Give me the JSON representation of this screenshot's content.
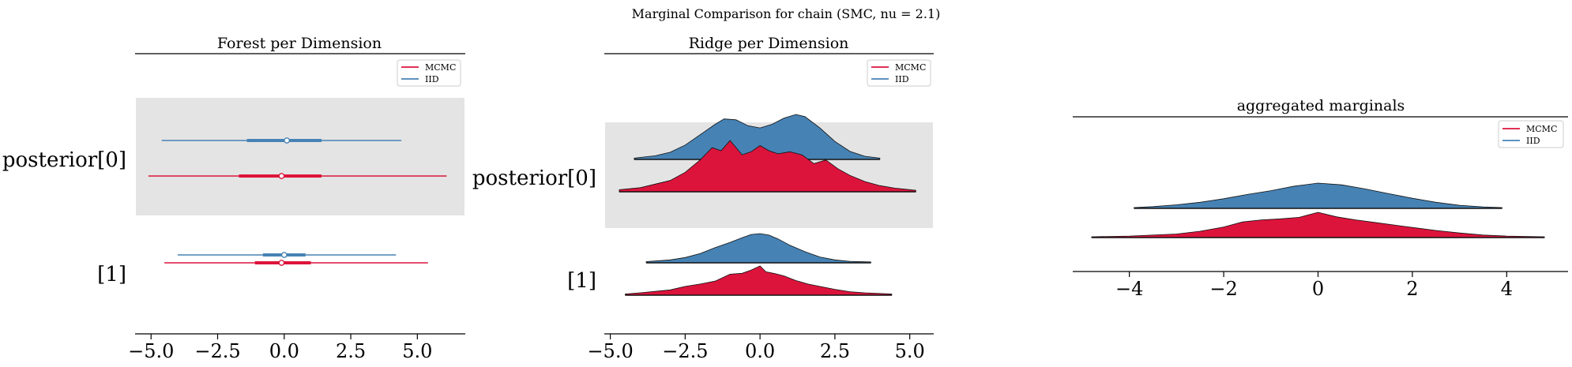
{
  "figure": {
    "suptitle": "Marginal Comparison for chain (SMC, nu = 2.1)"
  },
  "colors": {
    "mcmc": "#dc143c",
    "iid": "#4682b4",
    "shade": "#e4e4e4"
  },
  "chart_data": [
    {
      "type": "forest",
      "title": "Forest per Dimension",
      "xlim": [
        -5.6,
        6.8
      ],
      "xticks": [
        -5.0,
        -2.5,
        0.0,
        2.5,
        5.0
      ],
      "xtick_labels": [
        "−5.0",
        "−2.5",
        "0.0",
        "2.5",
        "5.0"
      ],
      "rows": [
        "posterior[0]",
        "[1]"
      ],
      "legend": {
        "location": "upper right",
        "entries": [
          "MCMC",
          "IID"
        ]
      },
      "series": [
        {
          "name": "MCMC",
          "color_key": "mcmc",
          "intervals": [
            {
              "row": "posterior[0]",
              "low": -5.1,
              "q1": -1.7,
              "median": -0.1,
              "q3": 1.4,
              "high": 6.1
            },
            {
              "row": "[1]",
              "low": -4.5,
              "q1": -1.1,
              "median": -0.1,
              "q3": 1.0,
              "high": 5.4
            }
          ]
        },
        {
          "name": "IID",
          "color_key": "iid",
          "intervals": [
            {
              "row": "posterior[0]",
              "low": -4.6,
              "q1": -1.4,
              "median": 0.1,
              "q3": 1.4,
              "high": 4.4
            },
            {
              "row": "[1]",
              "low": -4.0,
              "q1": -0.8,
              "median": 0.0,
              "q3": 0.8,
              "high": 4.2
            }
          ]
        }
      ]
    },
    {
      "type": "ridge",
      "title": "Ridge per Dimension",
      "xlim": [
        -5.2,
        5.8
      ],
      "xticks": [
        -5.0,
        -2.5,
        0.0,
        2.5,
        5.0
      ],
      "xtick_labels": [
        "−5.0",
        "−2.5",
        "0.0",
        "2.5",
        "5.0"
      ],
      "rows": [
        "posterior[0]",
        "[1]"
      ],
      "legend": {
        "location": "upper right",
        "entries": [
          "MCMC",
          "IID"
        ]
      },
      "series": [
        {
          "name": "IID",
          "color_key": "iid",
          "row": "posterior[0]",
          "x": [
            -4.2,
            -3.5,
            -3.0,
            -2.5,
            -2.0,
            -1.5,
            -1.2,
            -0.8,
            -0.4,
            0.0,
            0.4,
            0.8,
            1.2,
            1.5,
            2.0,
            2.5,
            3.0,
            3.5,
            4.0
          ],
          "density": [
            0.03,
            0.08,
            0.16,
            0.32,
            0.55,
            0.78,
            0.9,
            0.88,
            0.75,
            0.7,
            0.78,
            0.92,
            1.0,
            0.95,
            0.7,
            0.4,
            0.18,
            0.07,
            0.03
          ]
        },
        {
          "name": "MCMC",
          "color_key": "mcmc",
          "row": "posterior[0]",
          "x": [
            -4.7,
            -4.0,
            -3.0,
            -2.5,
            -2.0,
            -1.6,
            -1.3,
            -1.0,
            -0.6,
            -0.3,
            0.0,
            0.3,
            0.6,
            1.0,
            1.4,
            1.8,
            2.2,
            2.6,
            3.0,
            3.5,
            4.0,
            4.5,
            5.2
          ],
          "density": [
            0.04,
            0.08,
            0.22,
            0.38,
            0.62,
            0.86,
            0.8,
            1.0,
            0.72,
            0.78,
            0.9,
            0.8,
            0.74,
            0.78,
            0.72,
            0.55,
            0.62,
            0.45,
            0.32,
            0.2,
            0.12,
            0.07,
            0.03
          ]
        },
        {
          "name": "IID",
          "color_key": "iid",
          "row": "[1]",
          "x": [
            -3.8,
            -3.0,
            -2.5,
            -2.0,
            -1.5,
            -1.0,
            -0.6,
            -0.3,
            0.0,
            0.3,
            0.6,
            1.0,
            1.5,
            2.0,
            2.5,
            3.0,
            3.7
          ],
          "density": [
            0.04,
            0.1,
            0.18,
            0.32,
            0.52,
            0.7,
            0.86,
            0.97,
            1.0,
            0.95,
            0.82,
            0.6,
            0.38,
            0.2,
            0.1,
            0.05,
            0.03
          ]
        },
        {
          "name": "MCMC",
          "color_key": "mcmc",
          "row": "[1]",
          "x": [
            -4.5,
            -4.0,
            -3.0,
            -2.5,
            -2.0,
            -1.5,
            -1.0,
            -0.6,
            -0.3,
            0.0,
            0.2,
            0.5,
            0.8,
            1.2,
            1.6,
            2.0,
            2.5,
            3.0,
            3.5,
            4.4
          ],
          "density": [
            0.04,
            0.08,
            0.18,
            0.3,
            0.38,
            0.48,
            0.72,
            0.75,
            0.86,
            1.0,
            0.8,
            0.74,
            0.66,
            0.5,
            0.38,
            0.3,
            0.2,
            0.12,
            0.08,
            0.04
          ]
        }
      ]
    },
    {
      "type": "ridge",
      "title": "aggregated marginals",
      "xlim": [
        -5.2,
        5.3
      ],
      "xticks": [
        -4,
        -2,
        0,
        2,
        4
      ],
      "xtick_labels": [
        "−4",
        "−2",
        "0",
        "2",
        "4"
      ],
      "legend": {
        "location": "upper right",
        "entries": [
          "MCMC",
          "IID"
        ]
      },
      "series": [
        {
          "name": "IID",
          "color_key": "iid",
          "x": [
            -3.9,
            -3.5,
            -3.0,
            -2.5,
            -2.0,
            -1.5,
            -1.0,
            -0.5,
            0.0,
            0.5,
            1.0,
            1.5,
            2.0,
            2.5,
            3.0,
            3.5,
            3.9
          ],
          "density": [
            0.03,
            0.07,
            0.14,
            0.24,
            0.38,
            0.55,
            0.7,
            0.88,
            1.0,
            0.93,
            0.77,
            0.58,
            0.4,
            0.24,
            0.12,
            0.06,
            0.03
          ]
        },
        {
          "name": "MCMC",
          "color_key": "mcmc",
          "x": [
            -4.8,
            -4.0,
            -3.0,
            -2.5,
            -2.0,
            -1.6,
            -1.2,
            -0.8,
            -0.4,
            0.0,
            0.4,
            0.8,
            1.2,
            1.6,
            2.0,
            2.5,
            3.0,
            3.5,
            4.0,
            4.8
          ],
          "density": [
            0.03,
            0.06,
            0.14,
            0.25,
            0.42,
            0.62,
            0.7,
            0.74,
            0.8,
            1.0,
            0.82,
            0.7,
            0.6,
            0.5,
            0.4,
            0.28,
            0.18,
            0.1,
            0.06,
            0.03
          ]
        }
      ]
    }
  ]
}
